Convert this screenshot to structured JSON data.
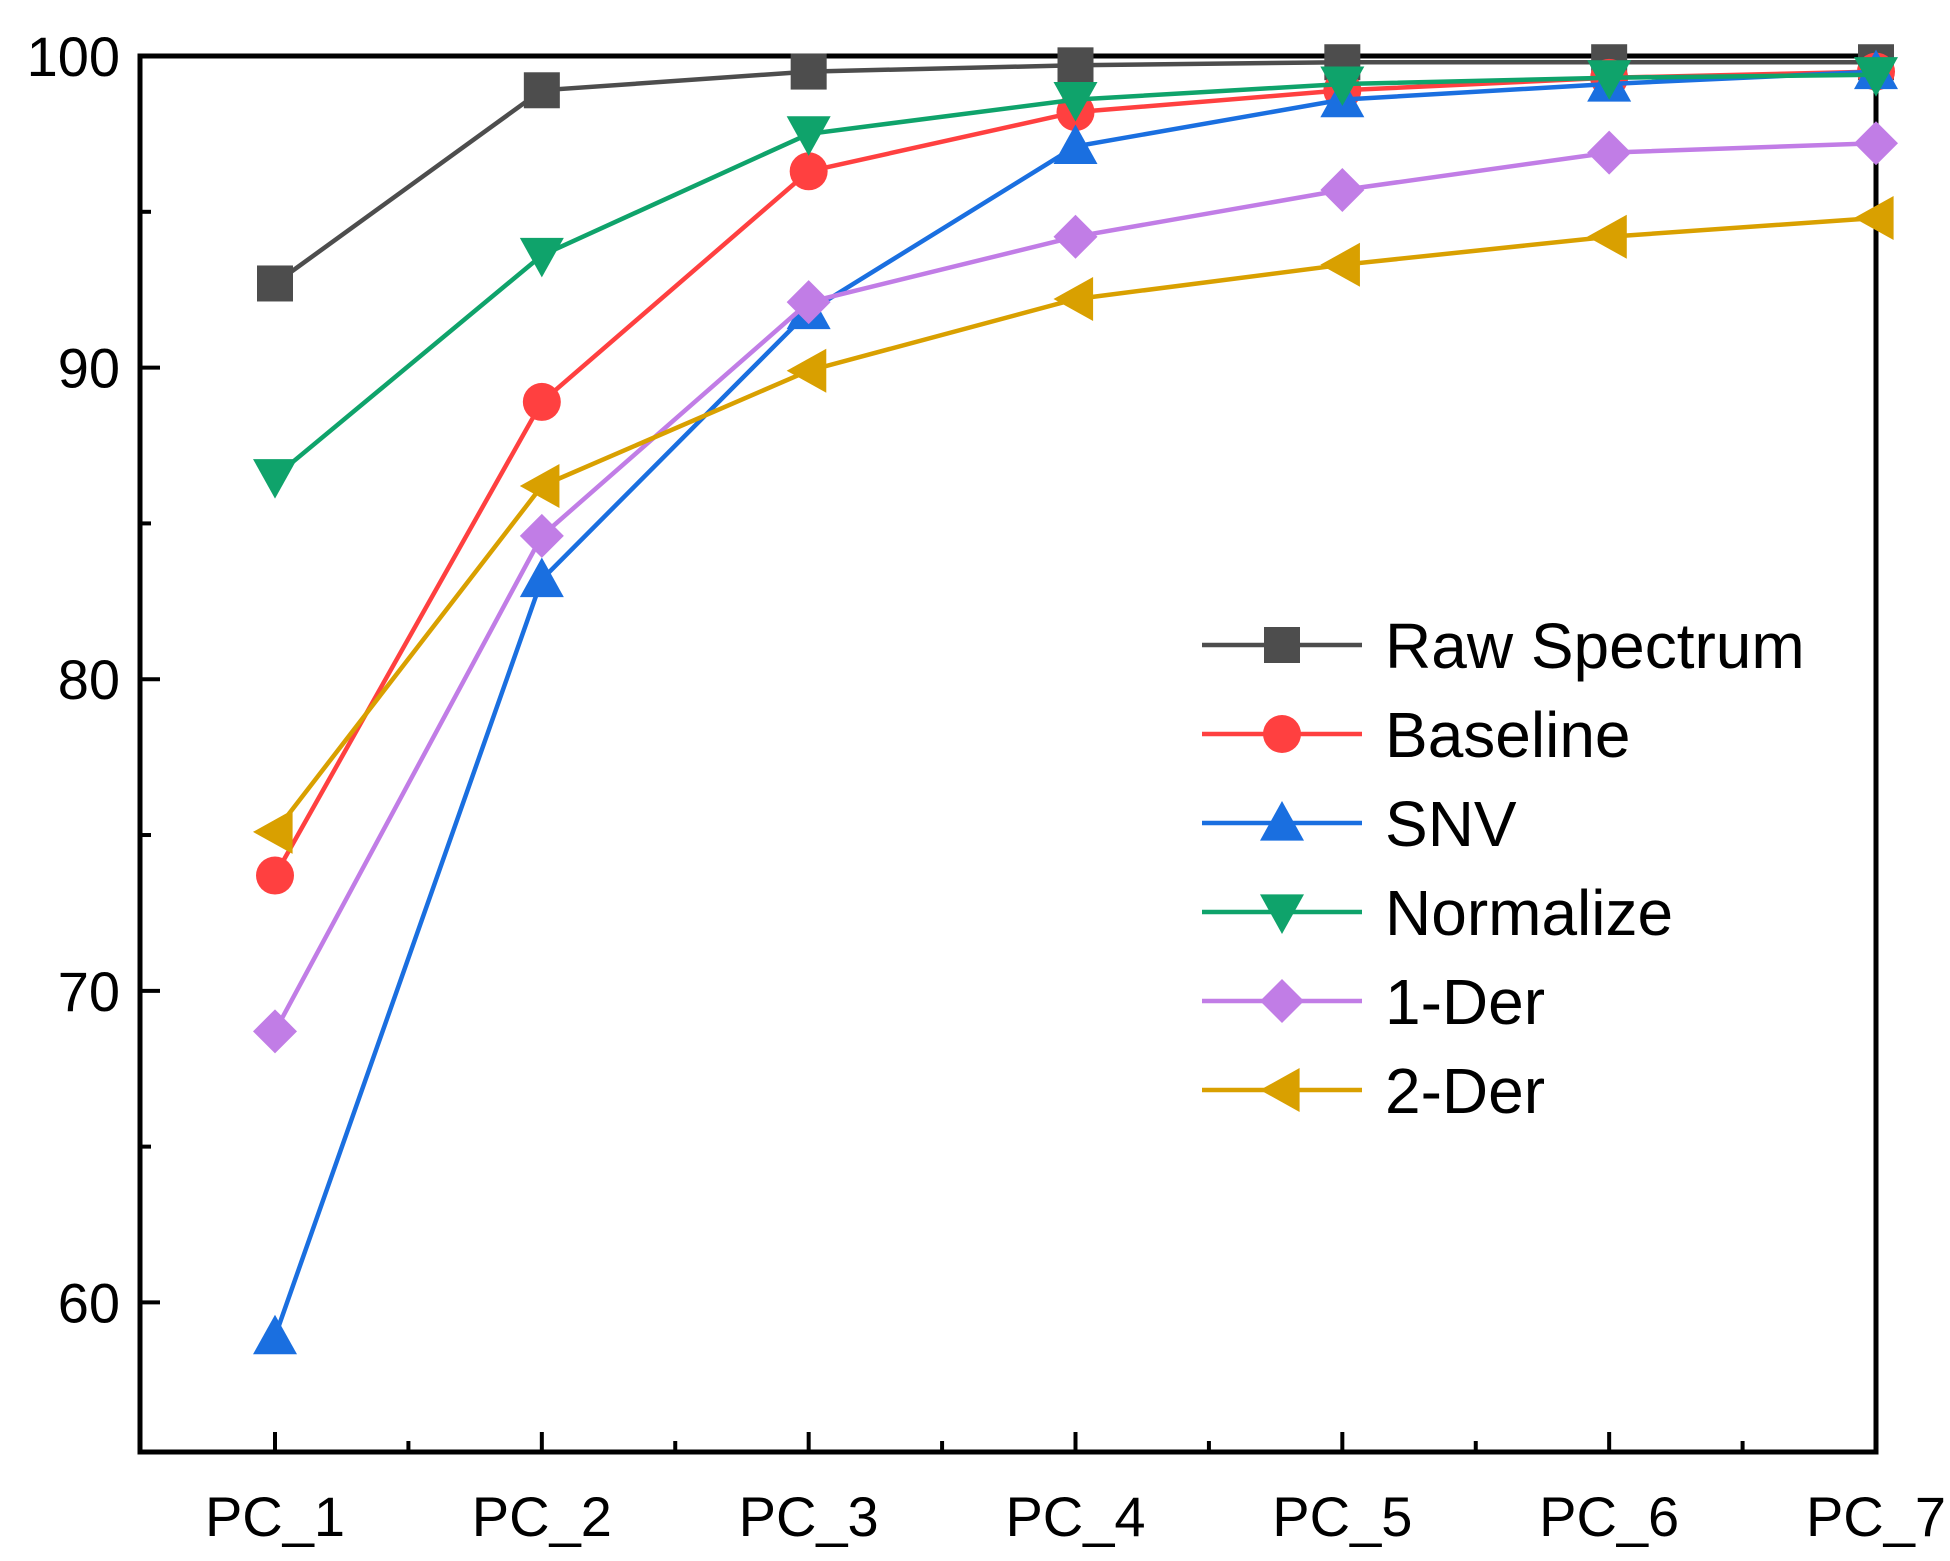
{
  "chart_data": {
    "type": "line",
    "categories": [
      "PC_1",
      "PC_2",
      "PC_3",
      "PC_4",
      "PC_5",
      "PC_6",
      "PC_7"
    ],
    "ylim": [
      55.2,
      100
    ],
    "yticks": [
      60,
      70,
      80,
      90,
      100
    ],
    "grid": false,
    "legend_position": "right",
    "series": [
      {
        "name": "Raw Spectrum",
        "color": "#4d4d4d",
        "marker": "square",
        "values": [
          92.7,
          98.9,
          99.5,
          99.7,
          99.8,
          99.8,
          99.8
        ]
      },
      {
        "name": "Baseline",
        "color": "#ff4040",
        "marker": "circle",
        "values": [
          73.7,
          88.9,
          96.3,
          98.2,
          98.9,
          99.3,
          99.5
        ]
      },
      {
        "name": "SNV",
        "color": "#1a6fe0",
        "marker": "triangle-up",
        "values": [
          58.9,
          83.2,
          91.8,
          97.1,
          98.6,
          99.1,
          99.5
        ]
      },
      {
        "name": "Normalize",
        "color": "#0fa36b",
        "marker": "triangle-down",
        "values": [
          86.5,
          93.6,
          97.5,
          98.6,
          99.1,
          99.3,
          99.4
        ]
      },
      {
        "name": "1-Der",
        "color": "#c17de6",
        "marker": "diamond",
        "values": [
          68.7,
          84.6,
          92.1,
          94.2,
          95.7,
          96.9,
          97.2
        ]
      },
      {
        "name": "2-Der",
        "color": "#d9a000",
        "marker": "triangle-left",
        "values": [
          75.1,
          86.2,
          89.9,
          92.2,
          93.3,
          94.2,
          94.8
        ]
      }
    ]
  }
}
